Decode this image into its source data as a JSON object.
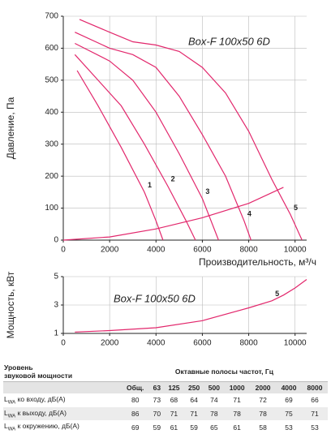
{
  "chart_data": [
    {
      "type": "line",
      "annotation": "Box-F 100x50 6D",
      "xlabel": "Производительность, м³/ч",
      "ylabel": "Давление, Па",
      "xlim": [
        0,
        10500
      ],
      "ylim": [
        0,
        700
      ],
      "xticks": [
        0,
        2000,
        4000,
        6000,
        8000,
        10000
      ],
      "yticks": [
        0,
        100,
        200,
        300,
        400,
        500,
        600,
        700
      ],
      "grid": true,
      "series": [
        {
          "name": "1",
          "color": "#e2276c",
          "x": [
            600,
            1500,
            2500,
            3500,
            4000,
            4300
          ],
          "values": [
            530,
            420,
            290,
            150,
            60,
            0
          ]
        },
        {
          "name": "2",
          "color": "#e2276c",
          "x": [
            500,
            1500,
            2500,
            3500,
            4500,
            5300,
            5700
          ],
          "values": [
            580,
            500,
            420,
            300,
            170,
            60,
            0
          ]
        },
        {
          "name": "3",
          "color": "#e2276c",
          "x": [
            500,
            2000,
            3000,
            4000,
            5000,
            6000,
            6700
          ],
          "values": [
            615,
            560,
            500,
            400,
            270,
            130,
            0
          ]
        },
        {
          "name": "4",
          "color": "#e2276c",
          "x": [
            500,
            2000,
            3000,
            4000,
            5000,
            6000,
            7000,
            7800,
            8100
          ],
          "values": [
            650,
            600,
            580,
            540,
            450,
            330,
            200,
            60,
            0
          ]
        },
        {
          "name": "5",
          "color": "#e2276c",
          "x": [
            700,
            2000,
            3000,
            4000,
            5000,
            6000,
            7000,
            8000,
            9000,
            9800,
            10300
          ],
          "values": [
            690,
            650,
            620,
            610,
            590,
            540,
            460,
            340,
            190,
            80,
            0
          ]
        },
        {
          "color": "#e2276c",
          "x": [
            0,
            2000,
            4000,
            6000,
            8000,
            9500
          ],
          "values": [
            0,
            10,
            35,
            70,
            115,
            165
          ]
        }
      ]
    },
    {
      "type": "line",
      "annotation": "Box-F 100x50 6D",
      "ylabel": "Мощность, кВт",
      "xlim": [
        0,
        10500
      ],
      "ylim": [
        1,
        5
      ],
      "xticks": [
        0,
        2000,
        4000,
        6000,
        8000,
        10000
      ],
      "yticks": [
        1,
        3,
        5
      ],
      "grid": true,
      "series": [
        {
          "name": "5",
          "color": "#e2276c",
          "x": [
            500,
            2000,
            4000,
            6000,
            8000,
            9000,
            9500,
            10000,
            10500
          ],
          "values": [
            1.1,
            1.2,
            1.4,
            1.9,
            2.8,
            3.3,
            3.7,
            4.2,
            4.8
          ]
        }
      ]
    }
  ],
  "table": {
    "level": [
      "Уровень",
      "звуковой мощности"
    ],
    "bands_title": "Октавные полосы частот, Гц",
    "columns": [
      "Общ.",
      63,
      125,
      250,
      500,
      1000,
      2000,
      4000,
      8000
    ],
    "rows": [
      {
        "symbol": "L",
        "sub": "WA",
        "label": "ко входу, дБ(А)",
        "values": [
          80,
          73,
          68,
          64,
          74,
          71,
          72,
          69,
          66
        ]
      },
      {
        "symbol": "L",
        "sub": "WA",
        "label": "к выходу, дБ(А)",
        "values": [
          86,
          70,
          71,
          71,
          78,
          78,
          78,
          75,
          71
        ]
      },
      {
        "symbol": "L",
        "sub": "WA",
        "label": "к окружению, дБ(А)",
        "values": [
          69,
          59,
          61,
          59,
          65,
          61,
          58,
          53,
          53
        ]
      }
    ]
  }
}
